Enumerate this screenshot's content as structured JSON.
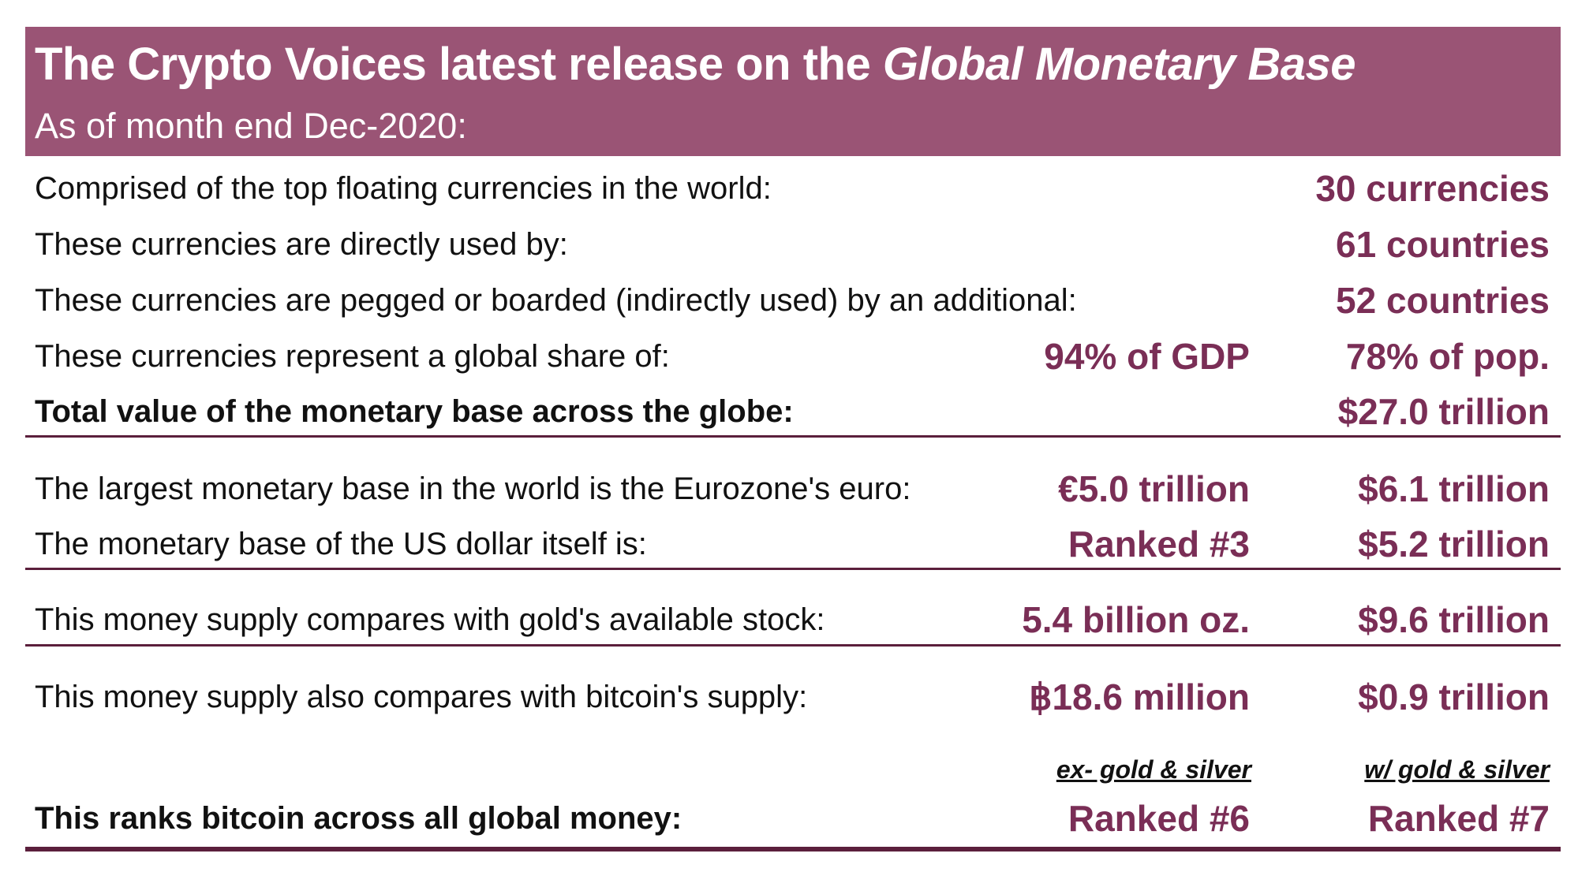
{
  "header": {
    "title_main": "The Crypto Voices latest release on the ",
    "title_italic": "Global Monetary Base",
    "subtitle": "As of month end Dec-2020:"
  },
  "rows": [
    {
      "label": "Comprised of the top floating currencies in the world:",
      "mid": "",
      "value": "30 currencies"
    },
    {
      "label": "These currencies are directly used by:",
      "mid": "",
      "value": "61 countries"
    },
    {
      "label": "These currencies are pegged or boarded (indirectly used) by an additional:",
      "mid": "",
      "value": "52 countries"
    },
    {
      "label": "These currencies represent a global share of:",
      "mid": "94% of GDP",
      "value": "78% of pop."
    },
    {
      "label": "Total value of the monetary base across the globe:",
      "mid": "",
      "value": "$27.0 trillion"
    },
    {
      "label": "The largest monetary base in the world is the Eurozone's euro:",
      "mid": "€5.0 trillion",
      "value": "$6.1 trillion"
    },
    {
      "label": "The monetary base of the US dollar itself is:",
      "mid": "Ranked #3",
      "value": "$5.2 trillion"
    },
    {
      "label": "This money supply compares with gold's available stock:",
      "mid": "5.4 billion oz.",
      "value": "$9.6 trillion"
    },
    {
      "label": "This money supply also compares with bitcoin's supply:",
      "mid": "฿18.6 million",
      "value": "$0.9 trillion"
    },
    {
      "label": "This ranks bitcoin across all global money:",
      "mid": "Ranked #6",
      "value": "Ranked #7"
    }
  ],
  "subheaders": {
    "mid": "ex- gold & silver",
    "value": "w/ gold & silver"
  },
  "colors": {
    "header_bg": "#9a5475",
    "accent_text": "#7a2e56",
    "rule": "#5b1f3c"
  }
}
